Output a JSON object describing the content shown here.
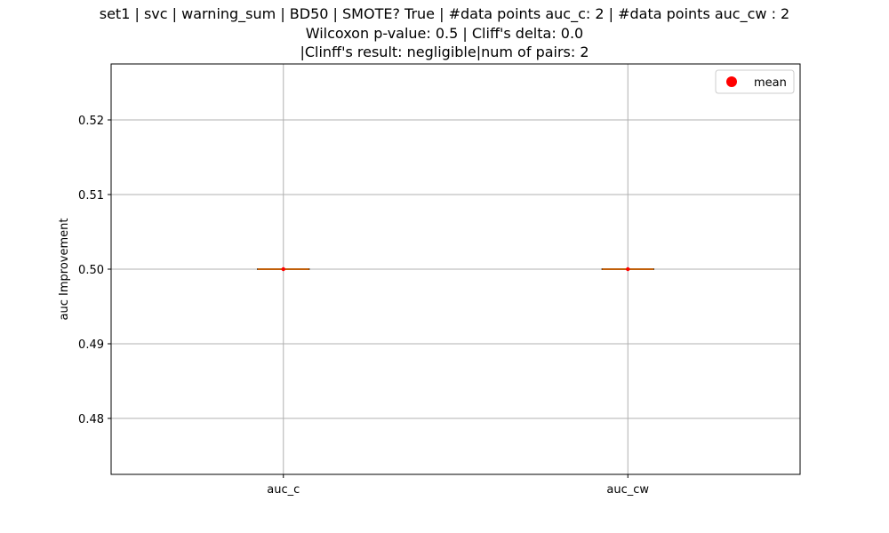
{
  "chart_data": {
    "type": "box",
    "title_lines": [
      "set1 | svc | warning_sum | BD50 | SMOTE? True | #data points auc_c: 2 | #data points auc_cw : 2",
      "Wilcoxon p-value: 0.5 | Cliff's delta: 0.0",
      "|Clinff's result: negligible|num of pairs: 2"
    ],
    "xlabel": "",
    "ylabel": "auc Improvement",
    "categories": [
      "auc_c",
      "auc_cw"
    ],
    "boxes": [
      {
        "category": "auc_c",
        "min": 0.5,
        "q1": 0.5,
        "median": 0.5,
        "q3": 0.5,
        "max": 0.5,
        "mean": 0.5
      },
      {
        "category": "auc_cw",
        "min": 0.5,
        "q1": 0.5,
        "median": 0.5,
        "q3": 0.5,
        "max": 0.5,
        "mean": 0.5
      }
    ],
    "ylim": [
      0.4725,
      0.5275
    ],
    "yticks": [
      0.48,
      0.49,
      0.5,
      0.51,
      0.52
    ],
    "ytick_labels": [
      "0.48",
      "0.49",
      "0.50",
      "0.51",
      "0.52"
    ],
    "grid": true,
    "legend": {
      "position": "top-right",
      "entries": [
        {
          "label": "mean",
          "marker": "circle",
          "color": "#ff0000"
        }
      ]
    },
    "colors": {
      "median_line": "#ff7f0e",
      "box_edge": "#000000",
      "mean_marker": "#ff0000",
      "grid": "#b0b0b0"
    }
  }
}
